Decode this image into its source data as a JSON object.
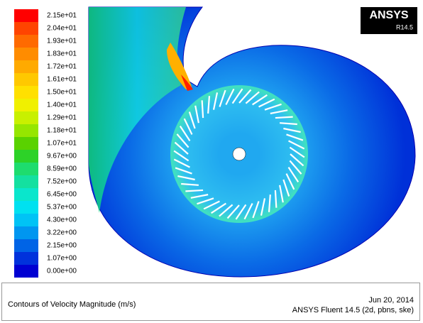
{
  "logo": {
    "brand": "ANSYS",
    "version": "R14.5"
  },
  "legend": {
    "levels": [
      {
        "label": "2.15e+01",
        "color": "#ff0000"
      },
      {
        "label": "2.04e+01",
        "color": "#ff4400"
      },
      {
        "label": "1.93e+01",
        "color": "#ff6a00"
      },
      {
        "label": "1.83e+01",
        "color": "#ff8c00"
      },
      {
        "label": "1.72e+01",
        "color": "#ffaa00"
      },
      {
        "label": "1.61e+01",
        "color": "#ffc800"
      },
      {
        "label": "1.50e+01",
        "color": "#ffe000"
      },
      {
        "label": "1.40e+01",
        "color": "#f0f000"
      },
      {
        "label": "1.29e+01",
        "color": "#c8f000"
      },
      {
        "label": "1.18e+01",
        "color": "#96e600"
      },
      {
        "label": "1.07e+01",
        "color": "#5ad200"
      },
      {
        "label": "9.67e+00",
        "color": "#2dd228"
      },
      {
        "label": "8.59e+00",
        "color": "#1edc6e"
      },
      {
        "label": "7.52e+00",
        "color": "#14e0a0"
      },
      {
        "label": "6.45e+00",
        "color": "#0ae6cc"
      },
      {
        "label": "5.37e+00",
        "color": "#00e1f0"
      },
      {
        "label": "4.30e+00",
        "color": "#00c3f5"
      },
      {
        "label": "3.22e+00",
        "color": "#0096f0"
      },
      {
        "label": "2.15e+00",
        "color": "#0064e6"
      },
      {
        "label": "1.07e+00",
        "color": "#0032dc"
      },
      {
        "label": "0.00e+00",
        "color": "#0000d2"
      }
    ]
  },
  "footer": {
    "title": "Contours of Velocity Magnitude (m/s)",
    "date": "Jun 20, 2014",
    "software": "ANSYS Fluent 14.5 (2d, pbns, ske)"
  }
}
